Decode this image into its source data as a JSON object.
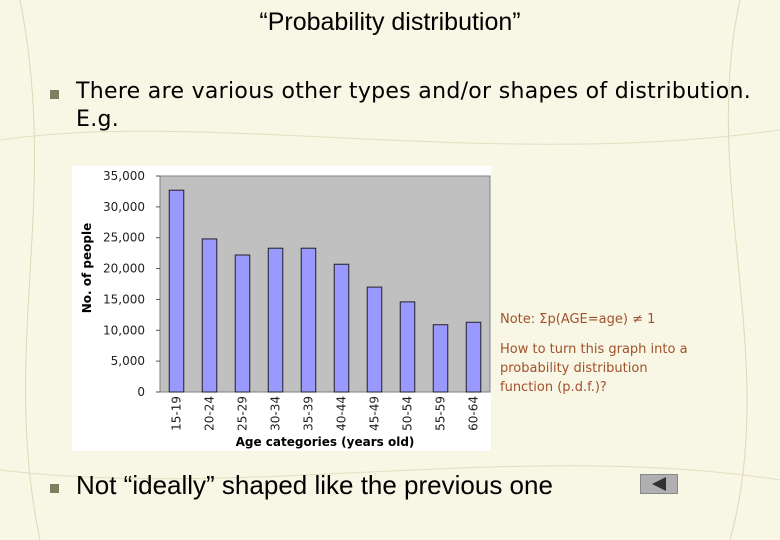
{
  "slide": {
    "title": "“Probability distribution”",
    "bullets": [
      "There are various other types and/or shapes of distribution. E.g.",
      "Not “ideally” shaped like the previous one"
    ],
    "notes": [
      "Note: Σp(AGE=age) ≠ 1",
      "How to turn this graph into a probability distribution function (p.d.f.)?"
    ]
  },
  "chart_data": {
    "type": "bar",
    "x_label": "Age categories (years old)",
    "y_label": "No. of people",
    "categories": [
      "15-19",
      "20-24",
      "25-29",
      "30-34",
      "35-39",
      "40-44",
      "45-49",
      "50-54",
      "55-59",
      "60-64"
    ],
    "values": [
      32700,
      24800,
      22200,
      23300,
      23300,
      20700,
      17000,
      14600,
      10900,
      11300
    ],
    "color": "#9999ff",
    "ylim": [
      0,
      35000
    ],
    "yticks": [
      0,
      {
        "value": 5000,
        "label": "5,000"
      },
      {
        "value": 10000,
        "label": "10,000"
      },
      {
        "value": 15000,
        "label": "15,000"
      },
      {
        "value": 20000,
        "label": "20,000"
      },
      {
        "value": 25000,
        "label": "25,000"
      },
      {
        "value": 30000,
        "label": "30,000"
      },
      {
        "value": 35000,
        "label": "35,000"
      }
    ],
    "grid": false
  }
}
